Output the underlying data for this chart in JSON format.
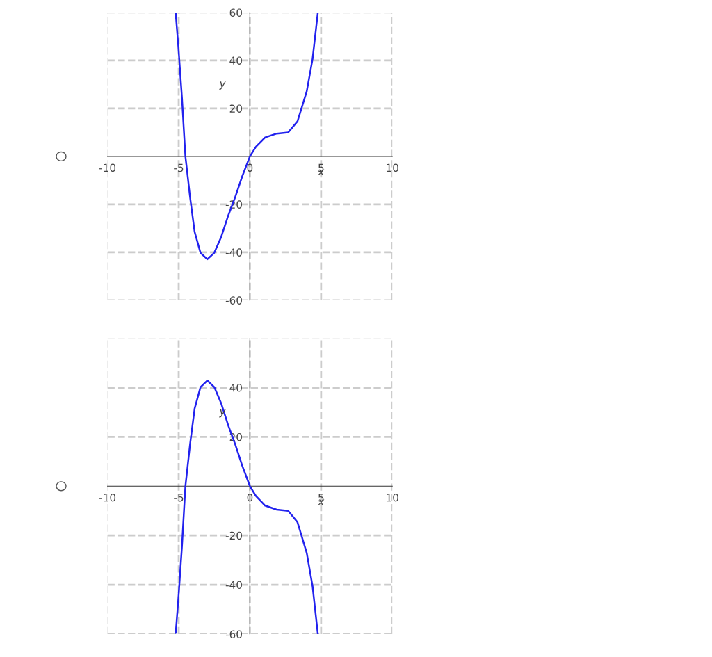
{
  "chart_data": [
    {
      "type": "line",
      "xlabel": "x",
      "ylabel": "y",
      "xlim": [
        -10,
        10
      ],
      "ylim": [
        -60,
        60
      ],
      "xticks": [
        -10,
        -5,
        0,
        5,
        10
      ],
      "yticks": [
        -60,
        -40,
        -20,
        20,
        40,
        60
      ],
      "grid": true,
      "marker": "none",
      "line_style": "solid",
      "series": [
        {
          "color": "#2222ee",
          "x": [
            -5.21,
            -5.02,
            -4.77,
            -4.53,
            -4.2,
            -3.88,
            -3.47,
            -2.99,
            -2.5,
            -2.01,
            -1.53,
            -1.04,
            -0.55,
            0,
            0.42,
            1.07,
            1.88,
            2.69,
            3.34,
            3.99,
            4.4,
            4.77
          ],
          "values": [
            59.6,
            45.4,
            24.2,
            0,
            -17.1,
            -31.5,
            -40.2,
            -42.9,
            -40.2,
            -33.5,
            -24.8,
            -17.1,
            -8.5,
            0,
            4.0,
            7.9,
            9.5,
            10.0,
            14.6,
            27.1,
            40.6,
            60
          ]
        }
      ]
    },
    {
      "type": "line",
      "xlabel": "x",
      "ylabel": "y",
      "xlim": [
        -10,
        10
      ],
      "ylim": [
        -60,
        60
      ],
      "xticks": [
        -10,
        -5,
        0,
        5,
        10
      ],
      "yticks": [
        -60,
        -40,
        -20,
        20,
        40,
        {
          "value": 60,
          "label": null
        }
      ],
      "grid": true,
      "marker": "none",
      "line_style": "solid",
      "series": [
        {
          "color": "#2222ee",
          "x": [
            -5.21,
            -5.02,
            -4.77,
            -4.53,
            -4.2,
            -3.88,
            -3.47,
            -2.99,
            -2.5,
            -2.01,
            -1.53,
            -1.04,
            -0.55,
            0,
            0.42,
            1.07,
            1.88,
            2.69,
            3.34,
            3.99,
            4.4,
            4.77
          ],
          "values": [
            -59.6,
            -45.4,
            -24.2,
            0,
            17.1,
            31.5,
            40.2,
            42.9,
            40.2,
            33.5,
            24.8,
            17.1,
            8.5,
            0,
            -4.0,
            -7.9,
            -9.5,
            -10.0,
            -14.6,
            -27.1,
            -40.6,
            -60
          ]
        }
      ]
    }
  ]
}
